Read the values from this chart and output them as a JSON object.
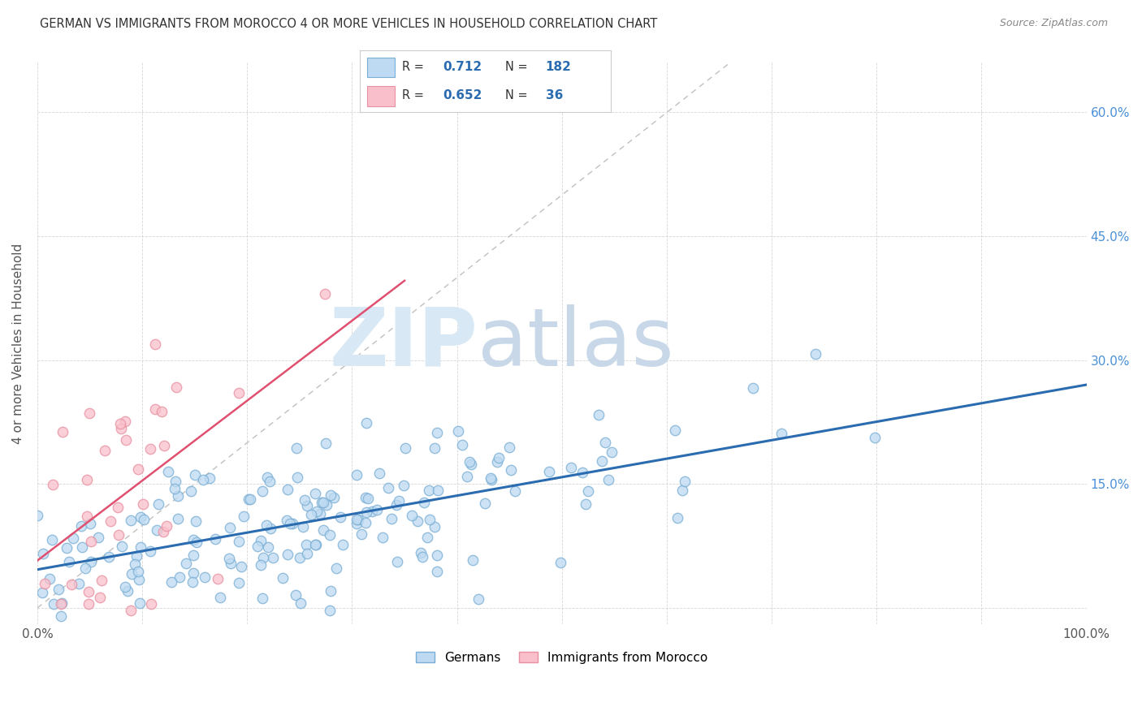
{
  "title": "GERMAN VS IMMIGRANTS FROM MOROCCO 4 OR MORE VEHICLES IN HOUSEHOLD CORRELATION CHART",
  "source": "Source: ZipAtlas.com",
  "ylabel": "4 or more Vehicles in Household",
  "legend_blue_R": "0.712",
  "legend_blue_N": "182",
  "legend_pink_R": "0.652",
  "legend_pink_N": "36",
  "legend_label_blue": "Germans",
  "legend_label_pink": "Immigrants from Morocco",
  "blue_face_color": "#BDDAF2",
  "blue_edge_color": "#7AAED4",
  "pink_face_color": "#F9C0CB",
  "pink_edge_color": "#E890A0",
  "blue_line_color": "#2B6CB0",
  "pink_line_color": "#E05070",
  "diag_line_color": "#C0C0C0",
  "legend_R_color": "#2B6CB0",
  "legend_N_color": "#E05820",
  "watermark_zip_color": "#D8E8F4",
  "watermark_atlas_color": "#C8D8E8",
  "grid_color": "#CCCCCC",
  "title_color": "#333333",
  "source_color": "#888888",
  "ylabel_color": "#555555",
  "tick_color": "#4A90D9",
  "xtick_color": "#555555",
  "xlim": [
    0.0,
    1.0
  ],
  "ylim": [
    -0.02,
    0.66
  ],
  "ytick_pos": [
    0.0,
    0.15,
    0.3,
    0.45,
    0.6
  ],
  "ytick_labels": [
    "",
    "15.0%",
    "30.0%",
    "45.0%",
    "60.0%"
  ],
  "xtick_pos": [
    0.0,
    0.1,
    0.2,
    0.3,
    0.4,
    0.5,
    0.6,
    0.7,
    0.8,
    0.9,
    1.0
  ],
  "xtick_labels": [
    "0.0%",
    "",
    "",
    "",
    "",
    "",
    "",
    "",
    "",
    "",
    "100.0%"
  ],
  "blue_seed": 42,
  "pink_seed": 99
}
